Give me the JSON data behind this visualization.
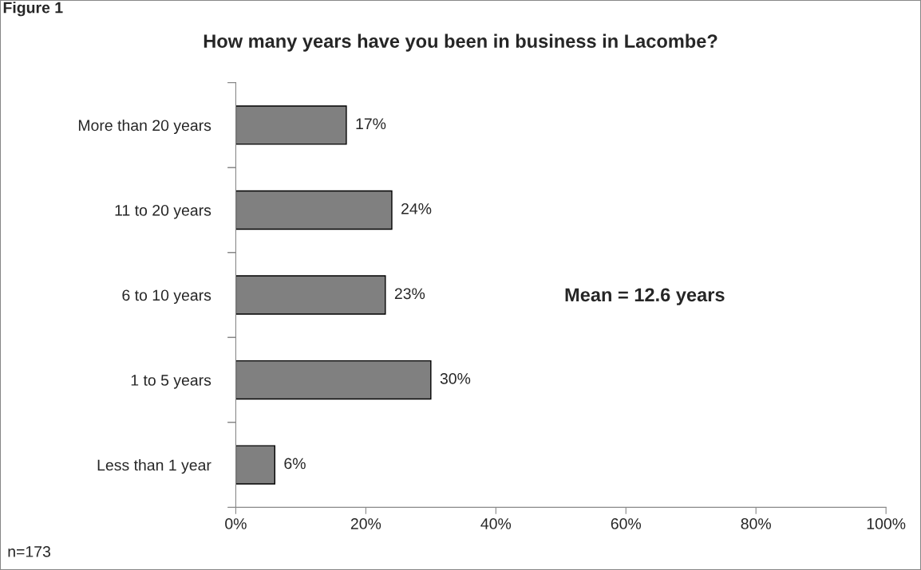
{
  "chart_data": {
    "type": "bar",
    "orientation": "horizontal",
    "title": "How many years have you been in business in Lacombe?",
    "categories": [
      "More than 20 years",
      "11 to 20 years",
      "6 to 10 years",
      "1 to 5 years",
      "Less than 1 year"
    ],
    "values": [
      17,
      24,
      23,
      30,
      6
    ],
    "value_labels": [
      "17%",
      "24%",
      "23%",
      "30%",
      "6%"
    ],
    "color": "#808080",
    "xlim": [
      0,
      100
    ],
    "xticks": [
      {
        "value": 0,
        "label": "0%"
      },
      {
        "value": 20,
        "label": "20%"
      },
      {
        "value": 40,
        "label": "40%"
      },
      {
        "value": 60,
        "label": "60%"
      },
      {
        "value": 80,
        "label": "80%"
      },
      {
        "value": 100,
        "label": "100%"
      }
    ],
    "grid": false,
    "legend": false,
    "annotations": [
      "Figure 1",
      "Mean = 12.6 years",
      "n=173"
    ]
  }
}
